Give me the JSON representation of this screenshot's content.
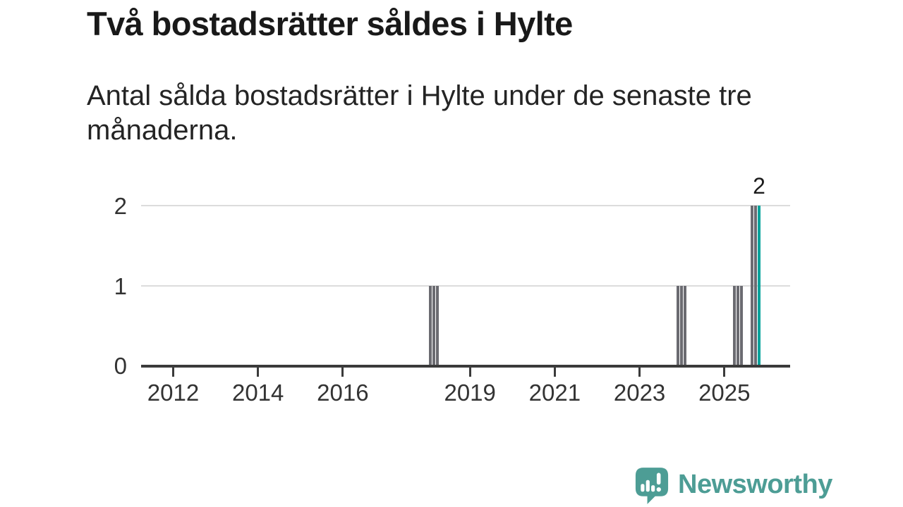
{
  "header": {
    "title": "Två bostadsrätter såldes i Hylte",
    "subtitle": "Antal sålda bostadsrätter i Hylte under de senaste tre månaderna."
  },
  "chart_data": {
    "type": "bar",
    "title": "Två bostadsrätter såldes i Hylte",
    "subtitle": "Antal sålda bostadsrätter i Hylte under de senaste tre månaderna.",
    "xlabel": "",
    "ylabel": "",
    "ylim": [
      0,
      2
    ],
    "y_ticks": [
      0,
      1,
      2
    ],
    "x_tick_years": [
      2012,
      2014,
      2016,
      2019,
      2021,
      2023,
      2025
    ],
    "x_range_years_approx": [
      2011.3,
      2026.5
    ],
    "grid": true,
    "legend_position": "none",
    "bar_color": "#6b6b71",
    "highlight_color": "#00a39b",
    "axis_color": "#3b3b3b",
    "gridline_color": "#dcdcdc",
    "months_without_bars_are_zero": true,
    "bars": [
      {
        "month": "2018-01",
        "value": 1
      },
      {
        "month": "2018-02",
        "value": 1
      },
      {
        "month": "2018-03",
        "value": 1
      },
      {
        "month": "2023-11",
        "value": 1
      },
      {
        "month": "2023-12",
        "value": 1
      },
      {
        "month": "2024-01",
        "value": 1
      },
      {
        "month": "2025-03",
        "value": 1
      },
      {
        "month": "2025-04",
        "value": 1
      },
      {
        "month": "2025-05",
        "value": 1
      },
      {
        "month": "2025-08",
        "value": 2
      },
      {
        "month": "2025-09",
        "value": 2
      },
      {
        "month": "2025-10",
        "value": 2,
        "highlight": true,
        "label": "2"
      }
    ]
  },
  "logo": {
    "text": "Newsworthy",
    "color": "#4d9d95",
    "icon": "newsworthy-speech-bubble-chart-icon"
  }
}
